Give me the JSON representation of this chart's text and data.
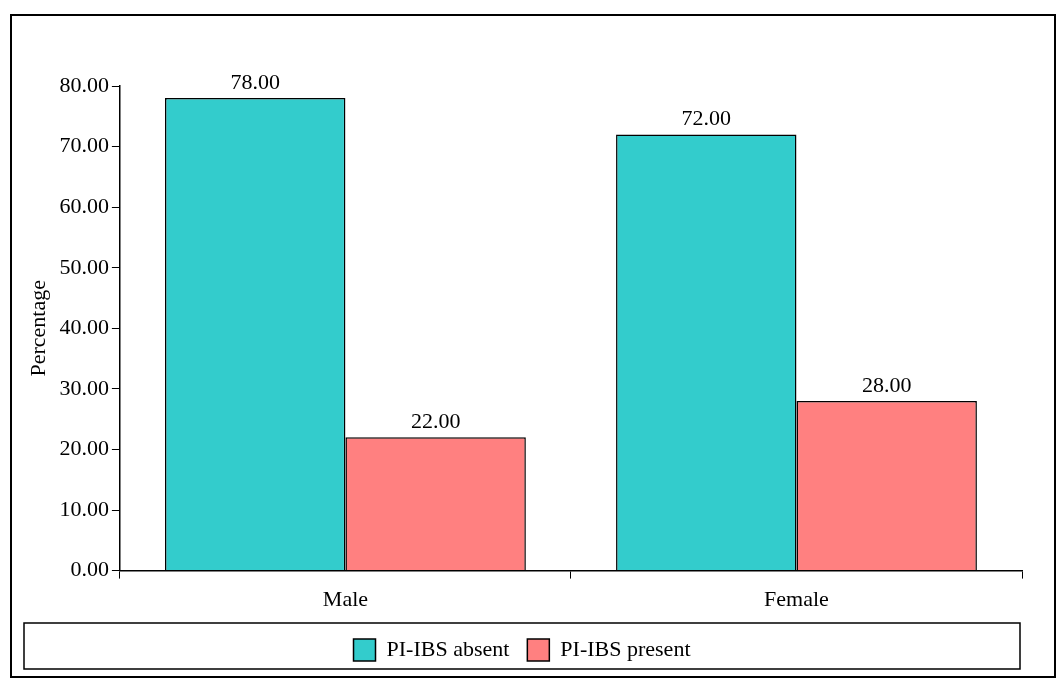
{
  "chart_data": {
    "type": "bar",
    "ylabel": "Percentage",
    "categories": [
      "Male",
      "Female"
    ],
    "series": [
      {
        "name": "PI-IBS absent",
        "color": "#33cccc",
        "values": [
          78,
          72
        ],
        "value_labels": [
          "78.00",
          "72.00"
        ]
      },
      {
        "name": "PI-IBS present",
        "color": "#ff8080",
        "values": [
          22,
          28
        ],
        "value_labels": [
          "22.00",
          "28.00"
        ]
      }
    ],
    "ylim": [
      0,
      80
    ],
    "yticks": [
      {
        "value": 0,
        "label": "0.00"
      },
      {
        "value": 10,
        "label": "10.00"
      },
      {
        "value": 20,
        "label": "20.00"
      },
      {
        "value": 30,
        "label": "30.00"
      },
      {
        "value": 40,
        "label": "40.00"
      },
      {
        "value": 50,
        "label": "50.00"
      },
      {
        "value": 60,
        "label": "60.00"
      },
      {
        "value": 70,
        "label": "70.00"
      },
      {
        "value": 80,
        "label": "80.00"
      }
    ],
    "grid": false,
    "legend": "bottom"
  }
}
